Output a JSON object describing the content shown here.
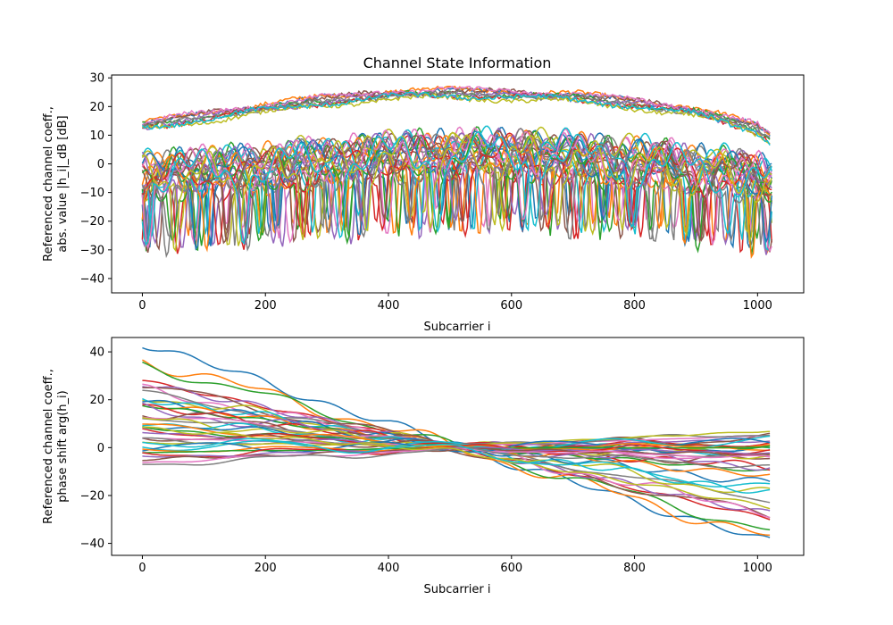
{
  "figure_title": "Channel State Information",
  "palette": [
    "#1f77b4",
    "#ff7f0e",
    "#2ca02c",
    "#d62728",
    "#9467bd",
    "#8c564b",
    "#e377c2",
    "#7f7f7f",
    "#bcbd22",
    "#17becf"
  ],
  "chart_data": [
    {
      "type": "line",
      "title": "Channel State Information",
      "xlabel": "Subcarrier i",
      "ylabel_line1": "Referenced channel coeff.,",
      "ylabel_line2": "abs. value |h_i|_dB [dB]",
      "xlim": [
        -50,
        1075
      ],
      "ylim": [
        -45,
        31
      ],
      "xticks": [
        0,
        200,
        400,
        600,
        800,
        1000
      ],
      "xtick_labels": [
        "0",
        "200",
        "400",
        "600",
        "800",
        "1000"
      ],
      "yticks": [
        -40,
        -30,
        -20,
        -10,
        0,
        10,
        20,
        30
      ],
      "ytick_labels": [
        "−40",
        "−30",
        "−20",
        "−10",
        "0",
        "10",
        "20",
        "30"
      ],
      "grid": false,
      "legend": "none",
      "series_note": "40 overlapping colored traces over subcarriers 0-1023",
      "groups": [
        {
          "kind": "strong",
          "count": 10,
          "x": [
            0,
            150,
            300,
            400,
            500,
            600,
            700,
            800,
            900,
            1000,
            1023
          ],
          "y": [
            13,
            18,
            22,
            24,
            24.5,
            24,
            23,
            21,
            18,
            12,
            8
          ]
        },
        {
          "kind": "weak",
          "count": 30,
          "x": [
            0,
            200,
            400,
            600,
            800,
            1000,
            1023
          ],
          "y": [
            -5,
            -2,
            2,
            3,
            0,
            -5,
            -8
          ],
          "ripple_amp": 12,
          "min": -41
        }
      ]
    },
    {
      "type": "line",
      "title": "",
      "xlabel": "Subcarrier i",
      "ylabel_line1": "Referenced channel coeff.,",
      "ylabel_line2": "phase shift arg(h_i)",
      "xlim": [
        -50,
        1075
      ],
      "ylim": [
        -45,
        46
      ],
      "xticks": [
        0,
        200,
        400,
        600,
        800,
        1000
      ],
      "xtick_labels": [
        "0",
        "200",
        "400",
        "600",
        "800",
        "1000"
      ],
      "yticks": [
        -40,
        -20,
        0,
        20,
        40
      ],
      "ytick_labels": [
        "−40",
        "−20",
        "0",
        "20",
        "40"
      ],
      "grid": false,
      "legend": "none",
      "series_note": "40 phase traces crossing near subcarrier 512",
      "start_values": [
        44,
        37,
        35,
        28,
        27,
        26,
        24,
        23,
        22,
        21,
        20,
        19,
        18,
        17,
        16,
        15,
        14,
        13,
        12,
        11,
        10,
        9,
        8,
        7,
        6,
        5,
        4,
        3,
        2,
        1,
        0,
        -1,
        -2,
        -3,
        -4,
        -5,
        -6,
        -7,
        8,
        3
      ],
      "end_values": [
        -40,
        -38,
        -35,
        -30,
        -28,
        -29,
        -27,
        -22,
        -20,
        -19,
        -15,
        -12,
        -10,
        -8,
        -7,
        -6,
        -5,
        -4,
        -3,
        -2,
        -1,
        0,
        1,
        2,
        3,
        4,
        5,
        6,
        7,
        3,
        2,
        1,
        0,
        -1,
        -2,
        -3,
        -4,
        -8,
        -25,
        -17
      ]
    }
  ]
}
